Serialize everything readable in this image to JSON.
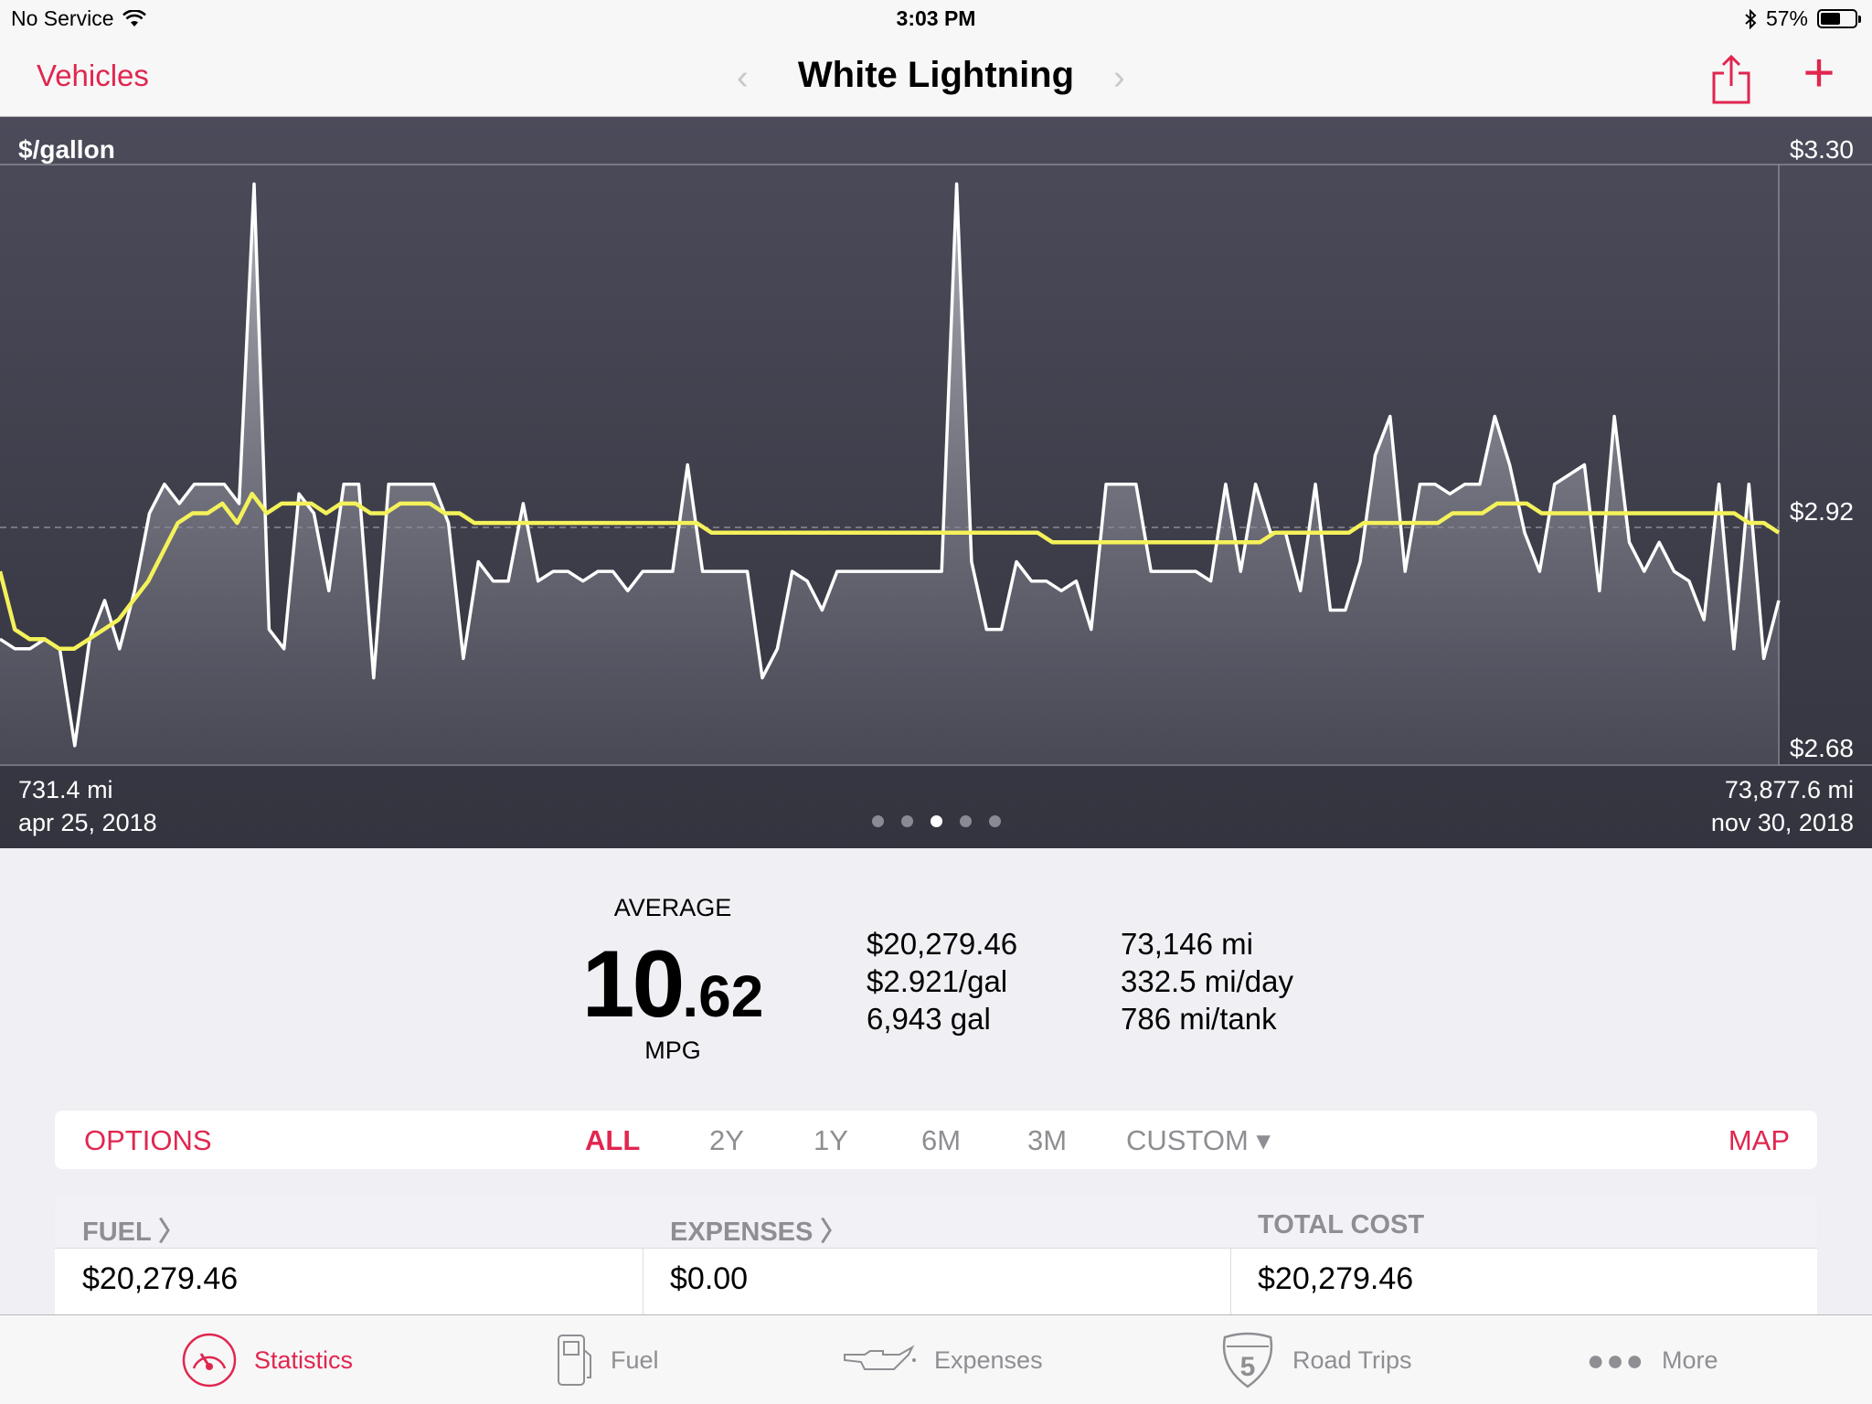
{
  "status": {
    "carrier": "No Service",
    "time": "3:03 PM",
    "battery": "57%",
    "battery_level": 0.57
  },
  "nav": {
    "back": "Vehicles",
    "title": "White Lightning"
  },
  "chart_data": {
    "type": "line",
    "ylabel": "$/gallon",
    "ylim": [
      2.68,
      3.3
    ],
    "y_ticks": [
      "$3.30",
      "$2.92",
      "$2.68"
    ],
    "x_start": {
      "odometer": "731.4 mi",
      "date": "apr 25, 2018"
    },
    "x_end": {
      "odometer": "73,877.6 mi",
      "date": "nov 30, 2018"
    },
    "series": [
      {
        "style": "white-area",
        "values": [
          2.81,
          2.8,
          2.8,
          2.81,
          2.8,
          2.7,
          2.81,
          2.85,
          2.8,
          2.86,
          2.94,
          2.97,
          2.95,
          2.97,
          2.97,
          2.97,
          2.95,
          3.28,
          2.82,
          2.8,
          2.96,
          2.94,
          2.86,
          2.97,
          2.97,
          2.77,
          2.97,
          2.97,
          2.97,
          2.97,
          2.93,
          2.79,
          2.89,
          2.87,
          2.87,
          2.95,
          2.87,
          2.88,
          2.88,
          2.87,
          2.88,
          2.88,
          2.86,
          2.88,
          2.88,
          2.88,
          2.99,
          2.88,
          2.88,
          2.88,
          2.88,
          2.77,
          2.8,
          2.88,
          2.87,
          2.84,
          2.88,
          2.88,
          2.88,
          2.88,
          2.88,
          2.88,
          2.88,
          2.88,
          3.28,
          2.89,
          2.82,
          2.82,
          2.89,
          2.87,
          2.87,
          2.86,
          2.87,
          2.82,
          2.97,
          2.97,
          2.97,
          2.88,
          2.88,
          2.88,
          2.88,
          2.87,
          2.97,
          2.88,
          2.97,
          2.92,
          2.92,
          2.86,
          2.97,
          2.84,
          2.84,
          2.89,
          3.0,
          3.04,
          2.88,
          2.97,
          2.97,
          2.96,
          2.97,
          2.97,
          3.04,
          2.99,
          2.92,
          2.88,
          2.97,
          2.98,
          2.99,
          2.86,
          3.04,
          2.91,
          2.88,
          2.91,
          2.88,
          2.87,
          2.83,
          2.97,
          2.8,
          2.97,
          2.79,
          2.85
        ]
      },
      {
        "style": "yellow-average",
        "values": [
          2.88,
          2.82,
          2.81,
          2.81,
          2.8,
          2.8,
          2.81,
          2.82,
          2.83,
          2.85,
          2.87,
          2.9,
          2.93,
          2.94,
          2.94,
          2.95,
          2.93,
          2.96,
          2.94,
          2.95,
          2.95,
          2.95,
          2.94,
          2.95,
          2.95,
          2.94,
          2.94,
          2.95,
          2.95,
          2.95,
          2.94,
          2.94,
          2.93,
          2.93,
          2.93,
          2.93,
          2.93,
          2.93,
          2.93,
          2.93,
          2.93,
          2.93,
          2.93,
          2.93,
          2.93,
          2.93,
          2.93,
          2.93,
          2.92,
          2.92,
          2.92,
          2.92,
          2.92,
          2.92,
          2.92,
          2.92,
          2.92,
          2.92,
          2.92,
          2.92,
          2.92,
          2.92,
          2.92,
          2.92,
          2.92,
          2.92,
          2.92,
          2.92,
          2.92,
          2.92,
          2.92,
          2.91,
          2.91,
          2.91,
          2.91,
          2.91,
          2.91,
          2.91,
          2.91,
          2.91,
          2.91,
          2.91,
          2.91,
          2.91,
          2.91,
          2.91,
          2.92,
          2.92,
          2.92,
          2.92,
          2.92,
          2.92,
          2.93,
          2.93,
          2.93,
          2.93,
          2.93,
          2.93,
          2.94,
          2.94,
          2.94,
          2.95,
          2.95,
          2.95,
          2.94,
          2.94,
          2.94,
          2.94,
          2.94,
          2.94,
          2.94,
          2.94,
          2.94,
          2.94,
          2.94,
          2.94,
          2.94,
          2.94,
          2.93,
          2.93,
          2.92
        ]
      }
    ],
    "grid_lines": "top, bottom, dashed average",
    "page_dots": 5,
    "active_page": 3
  },
  "summary": {
    "avg_label": "AVERAGE",
    "avg_int": "10",
    "avg_dec": ".62",
    "avg_unit": "MPG",
    "col1": [
      "$20,279.46",
      "$2.921/gal",
      "6,943 gal"
    ],
    "col2": [
      "73,146 mi",
      "332.5 mi/day",
      "786 mi/tank"
    ]
  },
  "options": {
    "options": "OPTIONS",
    "ranges": [
      "ALL",
      "2Y",
      "1Y",
      "6M",
      "3M"
    ],
    "selected_range": "ALL",
    "custom": "CUSTOM ▾",
    "map": "MAP"
  },
  "totals": {
    "fuel_header": "FUEL 〉",
    "fuel_value": "$20,279.46",
    "expenses_header": "EXPENSES 〉",
    "expenses_value": "$0.00",
    "total_header": "TOTAL COST",
    "total_value": "$20,279.46"
  },
  "tabs": [
    "Statistics",
    "Fuel",
    "Expenses",
    "Road Trips",
    "More"
  ],
  "active_tab": "Statistics",
  "colors": {
    "accent": "#e0264f",
    "chart_bg": "#3c3c48",
    "avg_line": "#f4f25a"
  }
}
